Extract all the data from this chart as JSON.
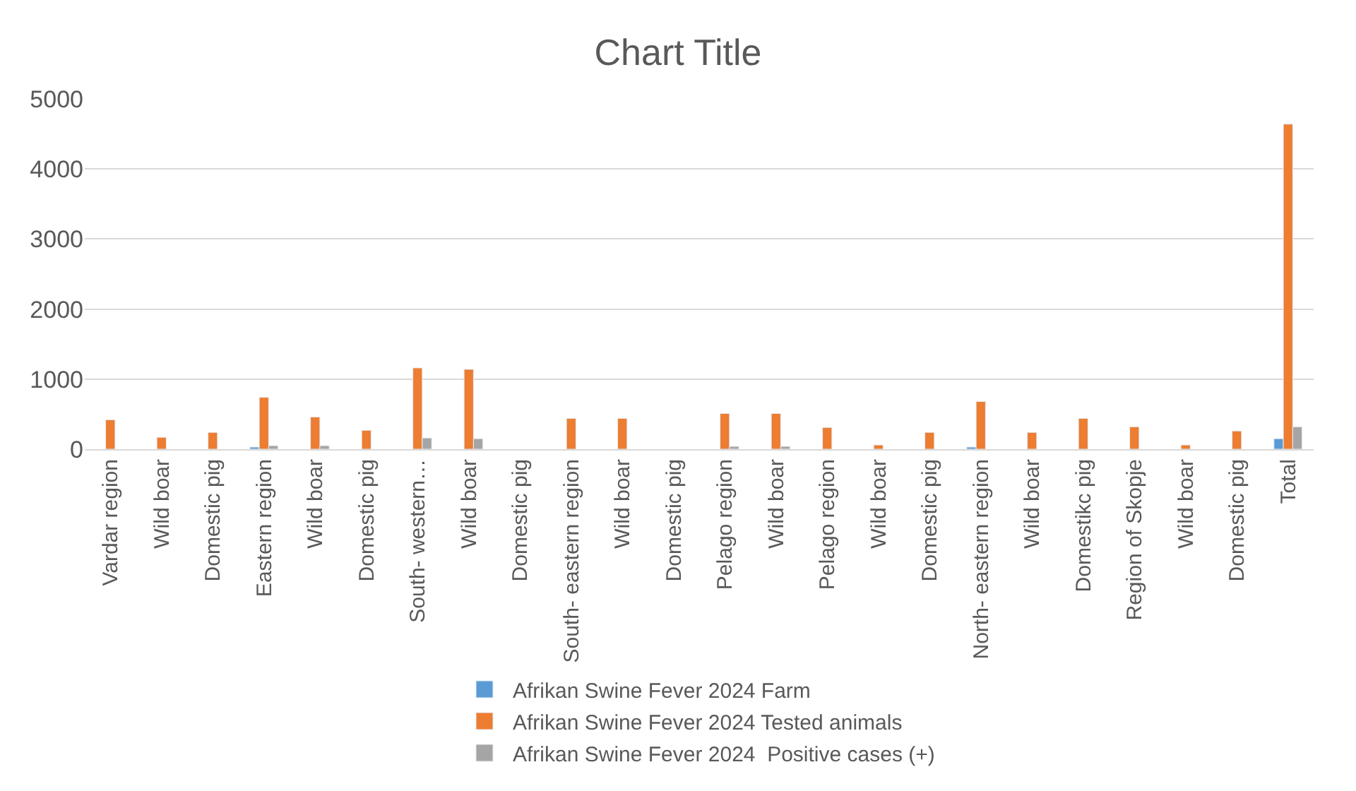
{
  "chart_data": {
    "type": "bar",
    "title": "Chart Title",
    "categories": [
      "Vardar region",
      "Wild boar",
      "Domestic pig",
      "Eastern region",
      "Wild boar",
      "Domestic pig",
      "South- western…",
      "Wild boar",
      "Domestic pig",
      "South- eastern region",
      "Wild boar",
      "Domestic pig",
      "Pelago region",
      "Wild boar",
      "Pelago region",
      "Wild boar",
      "Domestic pig",
      "North- eastern region",
      "Wild boar",
      "Domestikc pig",
      "Region of Skopje",
      "Wild boar",
      "Domestic pig",
      "Total"
    ],
    "series": [
      {
        "name": "Afrikan Swine Fever 2024 Farm",
        "color": "#5b9bd5",
        "values": [
          null,
          null,
          null,
          30,
          null,
          null,
          null,
          null,
          null,
          null,
          null,
          null,
          null,
          null,
          null,
          null,
          null,
          30,
          null,
          null,
          null,
          null,
          null,
          150
        ]
      },
      {
        "name": "Afrikan Swine Fever 2024 Tested animals",
        "color": "#ed7d31",
        "values": [
          420,
          170,
          240,
          740,
          460,
          270,
          1160,
          1140,
          null,
          440,
          440,
          null,
          510,
          510,
          310,
          60,
          240,
          680,
          240,
          440,
          320,
          60,
          260,
          4640
        ]
      },
      {
        "name": "Afrikan Swine Fever 2024  Positive cases (+)",
        "color": "#a5a5a5",
        "values": [
          null,
          null,
          null,
          50,
          50,
          null,
          160,
          150,
          null,
          null,
          null,
          null,
          40,
          40,
          null,
          null,
          null,
          null,
          null,
          null,
          null,
          null,
          null,
          320
        ]
      }
    ],
    "ylim": [
      0,
      5000
    ],
    "yticks": [
      0,
      1000,
      2000,
      3000,
      4000,
      5000
    ],
    "grid": "y",
    "legend": "bottom"
  }
}
